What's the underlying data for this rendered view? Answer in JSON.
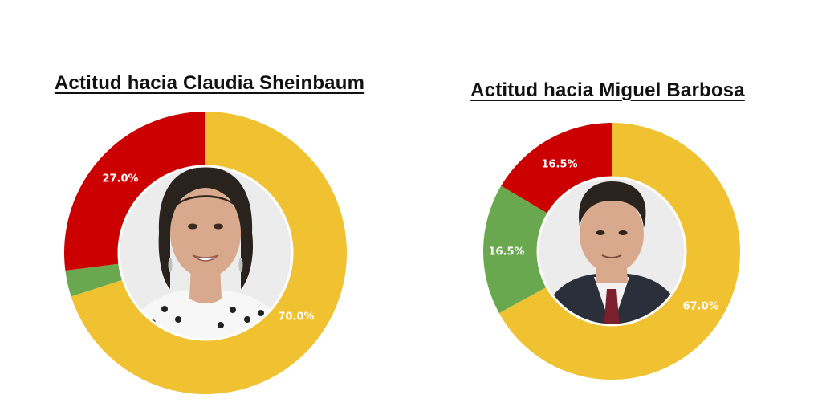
{
  "colors": {
    "favorable": "#f0c232",
    "neutral": "#6aa84f",
    "unfavorable": "#cc0000",
    "photo_bg": "#ececec",
    "skin": "#d8a98c",
    "hair": "#2a221d",
    "suit": "#2b2f3a",
    "tie": "#7a1f2b",
    "blouse": "#f7f7f7"
  },
  "chart_data": [
    {
      "type": "pie",
      "title": "Actitud hacia Claudia Sheinbaum",
      "slices": [
        {
          "value": 70.0,
          "label": "70.0%",
          "color": "#f0c232"
        },
        {
          "value": 3.0,
          "label": "",
          "color": "#6aa84f"
        },
        {
          "value": 27.0,
          "label": "27.0%",
          "color": "#cc0000"
        }
      ],
      "center_image": "portrait-claudia-sheinbaum"
    },
    {
      "type": "pie",
      "title": "Actitud hacia Miguel Barbosa",
      "slices": [
        {
          "value": 67.0,
          "label": "67.0%",
          "color": "#f0c232"
        },
        {
          "value": 16.5,
          "label": "16.5%",
          "color": "#6aa84f"
        },
        {
          "value": 16.5,
          "label": "16.5%",
          "color": "#cc0000"
        }
      ],
      "center_image": "portrait-miguel-barbosa"
    }
  ]
}
